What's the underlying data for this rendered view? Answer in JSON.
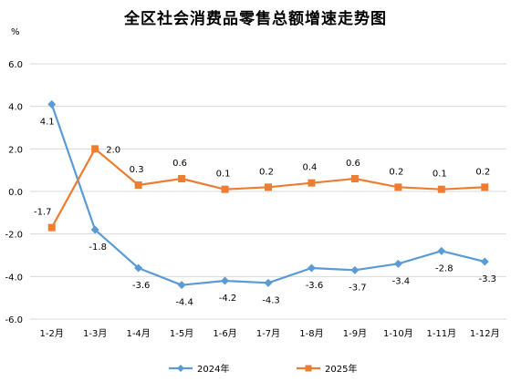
{
  "chart_data": {
    "type": "line",
    "title": "全区社会消费品零售总额增速走势图",
    "unit": "%",
    "categories": [
      "1-2月",
      "1-3月",
      "1-4月",
      "1-5月",
      "1-6月",
      "1-7月",
      "1-8月",
      "1-9月",
      "1-10月",
      "1-11月",
      "1-12月"
    ],
    "series": [
      {
        "name": "2024年",
        "values": [
          4.1,
          -1.8,
          -3.6,
          -4.4,
          -4.2,
          -4.3,
          -3.6,
          -3.7,
          -3.4,
          -2.8,
          -3.3
        ],
        "color": "#5b9bd5",
        "marker": "diamond"
      },
      {
        "name": "2025年",
        "values": [
          -1.7,
          2.0,
          0.3,
          0.6,
          0.1,
          0.2,
          0.4,
          0.6,
          0.2,
          0.1,
          0.2
        ],
        "color": "#ed7d31",
        "marker": "square"
      }
    ],
    "ylim": [
      -6.0,
      6.0
    ],
    "yticks": [
      "6.0",
      "4.0",
      "2.0",
      "0.0",
      "-2.0",
      "-4.0",
      "-6.0"
    ],
    "ytick_values": [
      6,
      4,
      2,
      0,
      -2,
      -4,
      -6
    ],
    "grid": true,
    "legend_position": "bottom"
  }
}
